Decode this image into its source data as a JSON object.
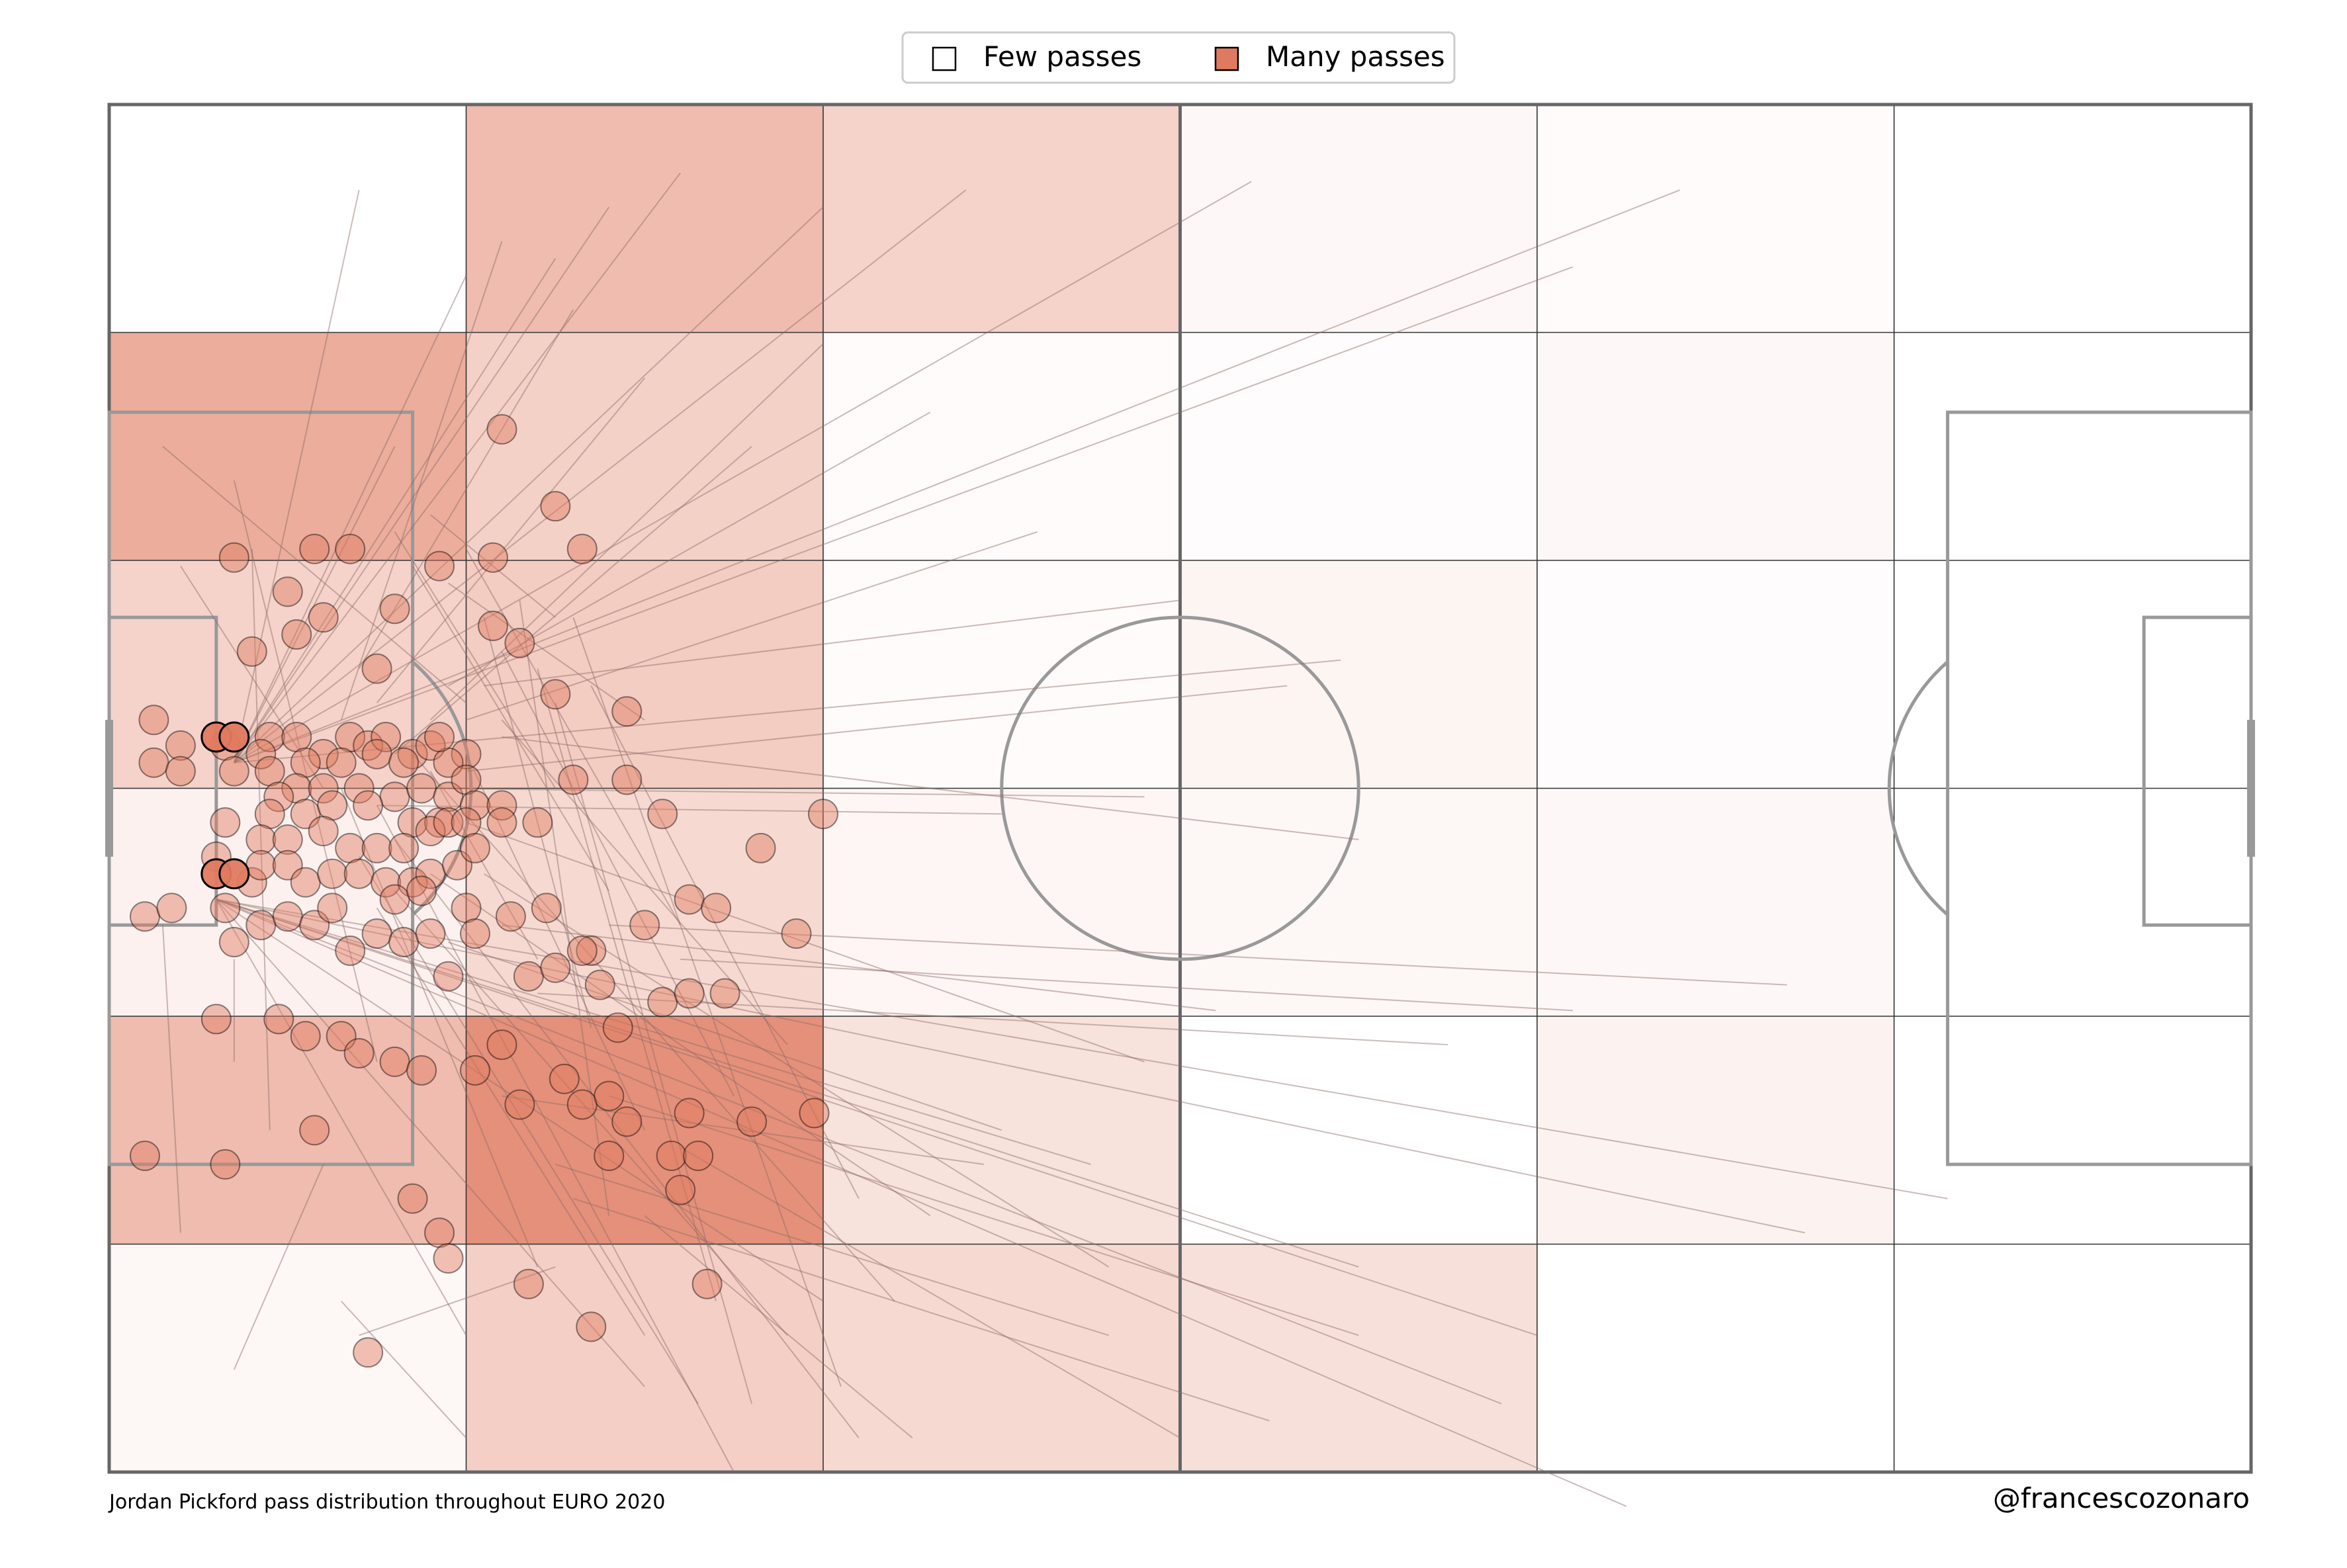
{
  "caption": "Jordan Pickford pass distribution throughout EURO 2020",
  "credit": "@francescozonaro",
  "legend": {
    "placement": "top-center",
    "items": [
      {
        "label": "Few passes",
        "color": "#ffffff"
      },
      {
        "label": "Many passes",
        "color": "#e07a5f"
      }
    ]
  },
  "colors": {
    "accent": "#e07a5f",
    "pitch_lines": "#999999",
    "pass_lines": "#8c6a66",
    "grid_lines": "#333333"
  },
  "chart_data": {
    "type": "heatmap",
    "title": "",
    "pitch": {
      "length": 120,
      "width": 80
    },
    "bins": {
      "x": 6,
      "y": 6
    },
    "grid": true,
    "heatmap_intensity": [
      [
        0.0,
        0.5,
        0.33,
        0.05,
        0.03,
        0.0
      ],
      [
        0.62,
        0.35,
        0.03,
        0.02,
        0.05,
        0.0
      ],
      [
        0.33,
        0.38,
        0.03,
        0.08,
        0.02,
        0.0
      ],
      [
        0.1,
        0.28,
        0.07,
        0.06,
        0.05,
        0.0
      ],
      [
        0.5,
        0.83,
        0.22,
        0.0,
        0.09,
        0.0
      ],
      [
        0.06,
        0.36,
        0.28,
        0.23,
        0.0,
        0.0
      ]
    ],
    "passes": [
      [
        7.0,
        38.5,
        14.0,
        5.0
      ],
      [
        7.0,
        38.5,
        16.0,
        20.0
      ],
      [
        7.0,
        38.5,
        20.0,
        10.0
      ],
      [
        7.0,
        38.5,
        25.0,
        9.0
      ],
      [
        7.0,
        38.5,
        28.0,
        6.0
      ],
      [
        7.0,
        38.5,
        32.0,
        4.0
      ],
      [
        7.0,
        38.5,
        40.0,
        6.0
      ],
      [
        7.0,
        38.5,
        48.0,
        5.0
      ],
      [
        7.0,
        38.5,
        64.0,
        4.5
      ],
      [
        7.0,
        38.5,
        82.0,
        9.5
      ],
      [
        7.0,
        38.5,
        88.0,
        5.0
      ],
      [
        7.0,
        38.5,
        69.0,
        32.5
      ],
      [
        6.0,
        46.5,
        20.0,
        72.0
      ],
      [
        6.0,
        46.5,
        30.0,
        75.0
      ],
      [
        6.0,
        46.5,
        40.0,
        70.0
      ],
      [
        6.0,
        46.5,
        55.0,
        62.0
      ],
      [
        6.0,
        46.5,
        70.0,
        68.0
      ],
      [
        6.0,
        46.5,
        80.0,
        72.0
      ],
      [
        6.0,
        46.5,
        95.0,
        66.0
      ],
      [
        6.0,
        46.5,
        103.0,
        64.0
      ],
      [
        6.0,
        46.5,
        85.0,
        82.0
      ],
      [
        6.0,
        46.5,
        78.0,
        76.0
      ],
      [
        13.0,
        40.0,
        24.0,
        68.0
      ],
      [
        14.0,
        44.0,
        33.0,
        76.0
      ],
      [
        15.0,
        41.0,
        35.0,
        80.0
      ],
      [
        16.0,
        43.0,
        42.0,
        78.0
      ],
      [
        17.0,
        38.0,
        44.0,
        70.0
      ],
      [
        16.0,
        46.0,
        38.0,
        72.0
      ],
      [
        15.0,
        47.0,
        30.0,
        72.0
      ],
      [
        18.0,
        45.0,
        46.0,
        65.0
      ],
      [
        19.0,
        49.0,
        50.0,
        60.0
      ],
      [
        20.0,
        42.0,
        58.0,
        56.0
      ],
      [
        21.0,
        45.0,
        56.0,
        68.0
      ],
      [
        22.0,
        48.0,
        62.0,
        53.0
      ],
      [
        13.0,
        36.0,
        22.0,
        8.0
      ],
      [
        14.0,
        33.0,
        26.0,
        12.0
      ],
      [
        15.0,
        35.0,
        30.0,
        16.0
      ],
      [
        16.0,
        38.0,
        36.0,
        20.0
      ],
      [
        18.0,
        36.0,
        40.0,
        14.0
      ],
      [
        19.0,
        34.0,
        46.0,
        18.0
      ],
      [
        20.0,
        36.0,
        52.0,
        25.0
      ],
      [
        21.0,
        34.0,
        60.0,
        29.0
      ],
      [
        20.0,
        39.0,
        66.0,
        34.0
      ],
      [
        22.0,
        37.0,
        70.0,
        43.0
      ],
      [
        18.0,
        40.0,
        58.0,
        40.5
      ],
      [
        15.0,
        41.0,
        50.0,
        41.5
      ],
      [
        22.0,
        58.0,
        49.0,
        62.0
      ],
      [
        25.0,
        62.0,
        56.0,
        72.0
      ],
      [
        28.0,
        58.0,
        70.0,
        72.0
      ],
      [
        30.0,
        65.0,
        45.0,
        78.0
      ],
      [
        32.0,
        61.0,
        60.0,
        78.0
      ],
      [
        26.0,
        64.0,
        65.0,
        77.0
      ],
      [
        24.0,
        52.0,
        75.0,
        55.0
      ],
      [
        28.0,
        48.0,
        94.0,
        51.5
      ],
      [
        32.0,
        50.0,
        82.0,
        53.0
      ],
      [
        3.0,
        20.0,
        20.0,
        35.0
      ],
      [
        4.0,
        27.0,
        12.0,
        40.0
      ],
      [
        3.0,
        48.0,
        4.0,
        66.0
      ],
      [
        7.0,
        56.0,
        7.0,
        50.0
      ],
      [
        8.0,
        26.0,
        9.0,
        60.0
      ],
      [
        7.0,
        22.0,
        15.0,
        56.0
      ],
      [
        12.0,
        62.0,
        7.0,
        74.0
      ],
      [
        13.0,
        70.0,
        20.0,
        78.0
      ],
      [
        14.0,
        72.0,
        25.0,
        68.0
      ],
      [
        16.0,
        25.0,
        25.0,
        40.0
      ],
      [
        17.0,
        27.0,
        28.0,
        46.0
      ],
      [
        18.0,
        24.0,
        25.0,
        30.0
      ],
      [
        19.0,
        28.0,
        30.0,
        36.0
      ],
      [
        20.0,
        26.0,
        32.0,
        48.0
      ],
      [
        21.0,
        30.0,
        27.0,
        54.0
      ],
      [
        22.0,
        32.0,
        35.0,
        58.0
      ],
      [
        23.0,
        29.0,
        28.0,
        65.0
      ],
      [
        24.0,
        33.0,
        34.0,
        70.0
      ],
      [
        25.0,
        35.0,
        36.0,
        76.0
      ],
      [
        26.0,
        30.0,
        41.0,
        75.0
      ],
      [
        27.0,
        34.0,
        42.0,
        64.0
      ],
      [
        22.0,
        36.0,
        38.0,
        55.0
      ],
      [
        20.0,
        38.0,
        30.0,
        60.0
      ],
      [
        18.0,
        39.0,
        24.0,
        50.0
      ]
    ],
    "pass_origins": [
      [
        22.0,
        19.0
      ],
      [
        25.0,
        23.5
      ],
      [
        26.5,
        26.0
      ],
      [
        21.5,
        26.5
      ],
      [
        7.0,
        26.5
      ],
      [
        11.5,
        26.0
      ],
      [
        13.5,
        26.0
      ],
      [
        18.5,
        27.0
      ],
      [
        10.0,
        28.5
      ],
      [
        12.0,
        30.0
      ],
      [
        16.0,
        29.5
      ],
      [
        8.0,
        32.0
      ],
      [
        10.5,
        31.0
      ],
      [
        15.0,
        33.0
      ],
      [
        23.0,
        31.5
      ],
      [
        21.5,
        30.5
      ],
      [
        25.0,
        34.5
      ],
      [
        29.0,
        35.5
      ],
      [
        2.5,
        36.0
      ],
      [
        4.0,
        37.5
      ],
      [
        7.0,
        37.0
      ],
      [
        9.0,
        37.0
      ],
      [
        10.5,
        37.0
      ],
      [
        12.0,
        38.0
      ],
      [
        13.5,
        37.0
      ],
      [
        14.5,
        37.5
      ],
      [
        15.5,
        37.0
      ],
      [
        17.0,
        38.0
      ],
      [
        18.0,
        37.5
      ],
      [
        20.0,
        38.0
      ],
      [
        6.5,
        37.5
      ],
      [
        8.5,
        38.0
      ],
      [
        11.0,
        38.5
      ],
      [
        13.0,
        38.5
      ],
      [
        15.0,
        38.0
      ],
      [
        16.5,
        38.5
      ],
      [
        19.0,
        38.5
      ],
      [
        18.5,
        37.0
      ],
      [
        2.5,
        38.5
      ],
      [
        4.0,
        39.0
      ],
      [
        7.0,
        39.0
      ],
      [
        9.0,
        39.0
      ],
      [
        10.5,
        40.0
      ],
      [
        9.5,
        40.5
      ],
      [
        12.0,
        40.0
      ],
      [
        14.0,
        40.0
      ],
      [
        16.0,
        40.5
      ],
      [
        17.5,
        40.0
      ],
      [
        19.0,
        40.5
      ],
      [
        20.0,
        39.5
      ],
      [
        9.0,
        41.5
      ],
      [
        11.0,
        41.5
      ],
      [
        12.5,
        41.0
      ],
      [
        14.5,
        41.0
      ],
      [
        17.0,
        42.0
      ],
      [
        18.5,
        42.0
      ],
      [
        20.5,
        41.0
      ],
      [
        22.0,
        41.0
      ],
      [
        26.0,
        39.5
      ],
      [
        31.0,
        41.5
      ],
      [
        29.0,
        39.5
      ],
      [
        6.5,
        42.0
      ],
      [
        8.5,
        43.0
      ],
      [
        10.0,
        43.0
      ],
      [
        12.0,
        42.5
      ],
      [
        13.5,
        43.5
      ],
      [
        15.0,
        43.5
      ],
      [
        16.5,
        43.5
      ],
      [
        18.0,
        42.5
      ],
      [
        19.0,
        42.0
      ],
      [
        20.0,
        42.0
      ],
      [
        22.0,
        42.0
      ],
      [
        24.0,
        42.0
      ],
      [
        6.0,
        44.0
      ],
      [
        8.0,
        45.5
      ],
      [
        8.5,
        44.5
      ],
      [
        10.0,
        44.5
      ],
      [
        11.0,
        45.5
      ],
      [
        12.5,
        45.0
      ],
      [
        14.0,
        45.0
      ],
      [
        15.5,
        45.5
      ],
      [
        17.0,
        45.5
      ],
      [
        18.0,
        45.0
      ],
      [
        19.5,
        44.5
      ],
      [
        20.5,
        43.5
      ],
      [
        16.0,
        46.5
      ],
      [
        17.5,
        46.0
      ],
      [
        20.0,
        47.0
      ],
      [
        22.5,
        47.5
      ],
      [
        24.5,
        47.0
      ],
      [
        27.0,
        49.5
      ],
      [
        30.0,
        48.0
      ],
      [
        32.5,
        46.5
      ],
      [
        34.0,
        47.0
      ],
      [
        36.5,
        43.5
      ],
      [
        40.0,
        41.5
      ],
      [
        38.5,
        48.5
      ],
      [
        28.5,
        54.0
      ],
      [
        2.0,
        47.5
      ],
      [
        3.5,
        47.0
      ],
      [
        6.5,
        47.0
      ],
      [
        7.0,
        49.0
      ],
      [
        8.5,
        48.0
      ],
      [
        10.0,
        47.5
      ],
      [
        11.5,
        48.0
      ],
      [
        12.5,
        47.0
      ],
      [
        13.5,
        49.5
      ],
      [
        15.0,
        48.5
      ],
      [
        16.5,
        49.0
      ],
      [
        18.0,
        48.5
      ],
      [
        20.5,
        48.5
      ],
      [
        19.0,
        51.0
      ],
      [
        23.5,
        51.0
      ],
      [
        25.0,
        50.5
      ],
      [
        26.5,
        49.5
      ],
      [
        27.5,
        51.5
      ],
      [
        31.0,
        52.5
      ],
      [
        32.5,
        52.0
      ],
      [
        34.5,
        52.0
      ],
      [
        6.0,
        53.5
      ],
      [
        9.5,
        53.5
      ],
      [
        11.0,
        54.5
      ],
      [
        13.0,
        54.5
      ],
      [
        14.0,
        55.5
      ],
      [
        16.0,
        56.0
      ],
      [
        17.5,
        56.5
      ],
      [
        20.5,
        56.5
      ],
      [
        22.0,
        55.0
      ],
      [
        23.0,
        58.5
      ],
      [
        25.5,
        57.0
      ],
      [
        26.5,
        58.5
      ],
      [
        28.0,
        58.0
      ],
      [
        29.0,
        59.5
      ],
      [
        31.5,
        61.5
      ],
      [
        33.0,
        61.5
      ],
      [
        32.5,
        59.0
      ],
      [
        36.0,
        59.5
      ],
      [
        39.5,
        59.0
      ],
      [
        2.0,
        61.5
      ],
      [
        6.5,
        62.0
      ],
      [
        11.5,
        60.0
      ],
      [
        17.0,
        64.0
      ],
      [
        18.5,
        66.0
      ],
      [
        19.0,
        67.5
      ],
      [
        23.5,
        69.0
      ],
      [
        27.0,
        71.5
      ],
      [
        14.5,
        73.0
      ],
      [
        33.5,
        69.0
      ],
      [
        32.0,
        63.5
      ],
      [
        28.0,
        61.5
      ]
    ],
    "highlighted_origins": [
      [
        6.0,
        37.0
      ],
      [
        7.0,
        37.0
      ],
      [
        6.0,
        45.0
      ],
      [
        7.0,
        45.0
      ]
    ]
  }
}
